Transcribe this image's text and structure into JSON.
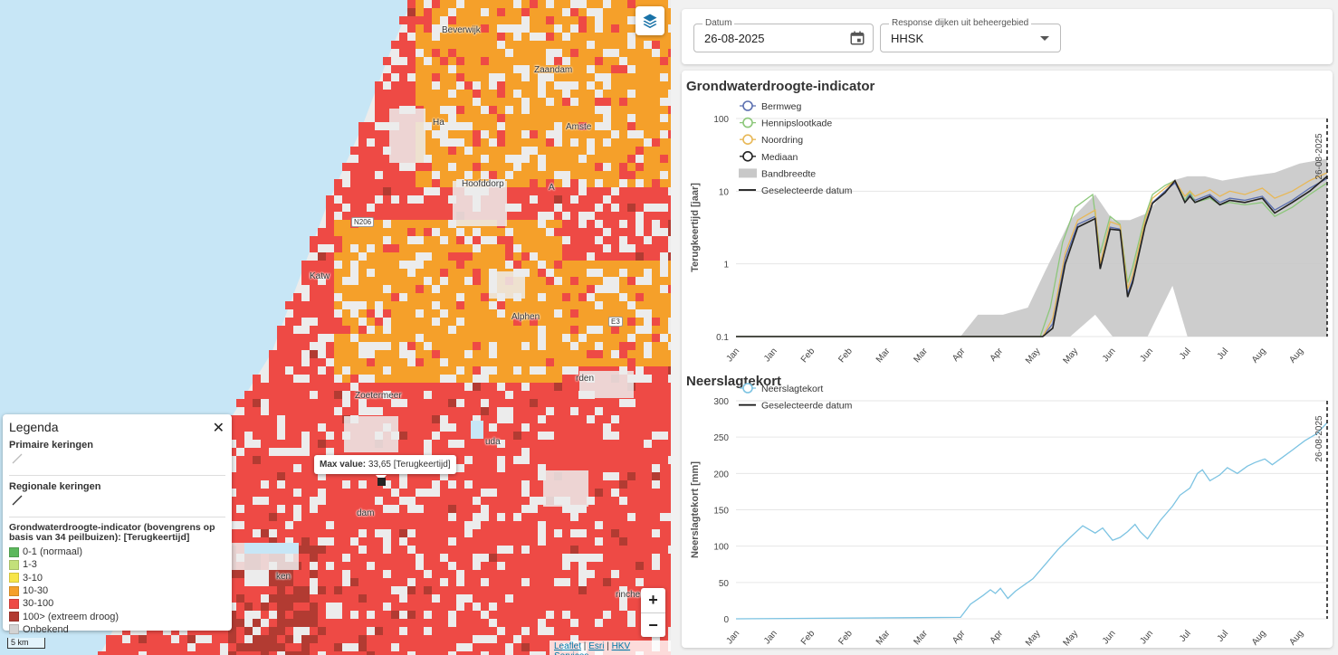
{
  "map": {
    "colors": {
      "water": "#c7e6f6",
      "land": "#ececec",
      "c_0_1": "#5cb85c",
      "c_1_3": "#c3e07a",
      "c_3_10": "#f7e548",
      "c_10_30": "#f5a02a",
      "c_30_100": "#ee4a45",
      "c_100": "#b23b32",
      "unknown": "#d3d3d3"
    },
    "place_labels": [
      {
        "name": "pl-beverwijk",
        "text": "Beverwijk"
      },
      {
        "name": "pl-zaandam",
        "text": "Zaandam"
      },
      {
        "name": "pl-haarlem",
        "text": "Ha"
      },
      {
        "name": "pl-amsterdam",
        "text": "Amste"
      },
      {
        "name": "pl-hoofddorp",
        "text": "Hoofddorp"
      },
      {
        "name": "pl-aalsmeer",
        "text": "A"
      },
      {
        "name": "pl-katwijk",
        "text": "Katw"
      },
      {
        "name": "pl-alphen",
        "text": "Alphen"
      },
      {
        "name": "pl-zoetermeer",
        "text": "Zoetermeer"
      },
      {
        "name": "pl-rotterdam",
        "text": "dam"
      },
      {
        "name": "pl-gouda",
        "text": "uda"
      },
      {
        "name": "pl-woerden",
        "text": "rden"
      },
      {
        "name": "pl-gorinchem",
        "text": "rinchem"
      },
      {
        "name": "pl-spijkenisse",
        "text": "ken"
      }
    ],
    "road_shields": [
      {
        "name": "road-n206",
        "text": "N206"
      },
      {
        "name": "road-e35",
        "text": "E3"
      }
    ],
    "tooltip": {
      "label": "Max value:",
      "value": "33,65 [Terugkeertijd]"
    },
    "zoom_in": "+",
    "zoom_out": "−",
    "scale": "5 km",
    "attribution": {
      "leaflet": "Leaflet",
      "sep1": " | ",
      "esri": "Esri",
      "sep2": " | ",
      "hkv": "HKV Services"
    }
  },
  "legend": {
    "title": "Legenda",
    "close": "✕",
    "primaire": "Primaire keringen",
    "regionale": "Regionale keringen",
    "indicator_title": "Grondwaterdroogte-indicator (bovengrens op basis van 34 peilbuizen): [Terugkeertijd]",
    "items": [
      {
        "label": "0-1 (normaal)",
        "color": "#5cb85c"
      },
      {
        "label": "1-3",
        "color": "#c3e07a"
      },
      {
        "label": "3-10",
        "color": "#f7e548"
      },
      {
        "label": "10-30",
        "color": "#f5a02a"
      },
      {
        "label": "30-100",
        "color": "#ee4a45"
      },
      {
        "label": "100> (extreem droog)",
        "color": "#b23b32"
      },
      {
        "label": "Onbekend",
        "color": "#d3d3d3"
      }
    ]
  },
  "filters": {
    "date_label": "Datum",
    "date_value": "26-08-2025",
    "dijk_label": "Response dijken uit beheergebied",
    "dijk_value": "HHSK"
  },
  "chart_data": [
    {
      "type": "line",
      "title": "Grondwaterdroogte-indicator",
      "ylabel": "Terugkeertijd [jaar]",
      "xlabel": "",
      "yscale": "log",
      "ylim": [
        0.1,
        100
      ],
      "yticks": [
        "0.1",
        "1",
        "10",
        "100"
      ],
      "x_ticks": [
        "Jan",
        "Jan",
        "Feb",
        "Feb",
        "Mar",
        "Mar",
        "Apr",
        "Apr",
        "May",
        "May",
        "Jun",
        "Jun",
        "Jul",
        "Jul",
        "Aug",
        "Aug"
      ],
      "x_range": [
        "2025-01-01",
        "2025-08-26"
      ],
      "selected_date": "26-08-2025",
      "series": [
        {
          "name": "Bermweg",
          "color": "#5b6fb0",
          "x": [
            "2025-01-01",
            "2025-04-20",
            "2025-05-04",
            "2025-05-08",
            "2025-05-13",
            "2025-05-18",
            "2025-05-25",
            "2025-05-27",
            "2025-05-31",
            "2025-06-04",
            "2025-06-07",
            "2025-06-09",
            "2025-06-14",
            "2025-06-17",
            "2025-06-22",
            "2025-06-26",
            "2025-06-30",
            "2025-07-02",
            "2025-07-04",
            "2025-07-10",
            "2025-07-14",
            "2025-07-18",
            "2025-07-24",
            "2025-07-31",
            "2025-08-05",
            "2025-08-12",
            "2025-08-19",
            "2025-08-26"
          ],
          "y": [
            0.1,
            0.1,
            0.1,
            0.15,
            1.2,
            3.5,
            4.5,
            0.9,
            3.2,
            3.0,
            0.38,
            0.6,
            3.5,
            7,
            10,
            13,
            7.5,
            9,
            7.5,
            9,
            7,
            8,
            7.5,
            8.5,
            5.5,
            7.5,
            11,
            15
          ]
        },
        {
          "name": "Hennipslootkade",
          "color": "#8cc77a",
          "x": [
            "2025-01-01",
            "2025-04-20",
            "2025-05-03",
            "2025-05-07",
            "2025-05-12",
            "2025-05-17",
            "2025-05-24",
            "2025-05-27",
            "2025-05-31",
            "2025-06-04",
            "2025-06-07",
            "2025-06-09",
            "2025-06-14",
            "2025-06-17",
            "2025-06-22",
            "2025-06-26",
            "2025-06-30",
            "2025-07-02",
            "2025-07-04",
            "2025-07-10",
            "2025-07-14",
            "2025-07-18",
            "2025-07-24",
            "2025-07-31",
            "2025-08-05",
            "2025-08-12",
            "2025-08-19",
            "2025-08-26"
          ],
          "y": [
            0.1,
            0.1,
            0.1,
            0.25,
            2.0,
            6,
            9,
            1.4,
            4.5,
            3.5,
            0.55,
            0.9,
            4.5,
            9,
            12,
            14,
            7.5,
            10,
            7,
            8,
            6.5,
            7,
            6.5,
            7,
            4.5,
            6,
            9,
            13
          ]
        },
        {
          "name": "Noordring",
          "color": "#e8b857",
          "x": [
            "2025-01-01",
            "2025-04-20",
            "2025-05-04",
            "2025-05-08",
            "2025-05-13",
            "2025-05-18",
            "2025-05-25",
            "2025-05-27",
            "2025-05-31",
            "2025-06-04",
            "2025-06-07",
            "2025-06-09",
            "2025-06-14",
            "2025-06-17",
            "2025-06-22",
            "2025-06-26",
            "2025-06-30",
            "2025-07-02",
            "2025-07-04",
            "2025-07-10",
            "2025-07-14",
            "2025-07-18",
            "2025-07-24",
            "2025-07-31",
            "2025-08-05",
            "2025-08-12",
            "2025-08-19",
            "2025-08-26"
          ],
          "y": [
            0.1,
            0.1,
            0.1,
            0.18,
            1.4,
            4.0,
            5.5,
            1.0,
            3.8,
            3.4,
            0.45,
            0.7,
            4.0,
            8,
            11,
            14,
            8.5,
            10,
            8.5,
            10.5,
            8.5,
            10,
            9,
            11,
            8,
            10,
            14,
            18
          ]
        },
        {
          "name": "Mediaan",
          "color": "#222222",
          "x": [
            "2025-01-01",
            "2025-04-20",
            "2025-05-04",
            "2025-05-08",
            "2025-05-13",
            "2025-05-18",
            "2025-05-25",
            "2025-05-27",
            "2025-05-31",
            "2025-06-04",
            "2025-06-07",
            "2025-06-09",
            "2025-06-14",
            "2025-06-17",
            "2025-06-22",
            "2025-06-26",
            "2025-06-30",
            "2025-07-02",
            "2025-07-04",
            "2025-07-10",
            "2025-07-14",
            "2025-07-18",
            "2025-07-24",
            "2025-07-31",
            "2025-08-05",
            "2025-08-12",
            "2025-08-19",
            "2025-08-26"
          ],
          "y": [
            0.1,
            0.1,
            0.1,
            0.13,
            1.0,
            3.2,
            4.2,
            0.85,
            3.0,
            2.9,
            0.35,
            0.55,
            3.3,
            6.8,
            9.5,
            14,
            7,
            8.5,
            7,
            8.5,
            6.5,
            7.5,
            7,
            8,
            5,
            7,
            10,
            16
          ]
        }
      ],
      "band": {
        "name": "Bandbreedte",
        "color": "#c8c8c8",
        "x": [
          "2025-04-01",
          "2025-04-08",
          "2025-04-18",
          "2025-04-28",
          "2025-05-05",
          "2025-05-15",
          "2025-05-25",
          "2025-06-01",
          "2025-06-08",
          "2025-06-15",
          "2025-06-25",
          "2025-07-01",
          "2025-07-08",
          "2025-07-15",
          "2025-07-25",
          "2025-08-05",
          "2025-08-15",
          "2025-08-26"
        ],
        "upper": [
          0.1,
          0.2,
          0.2,
          0.25,
          0.8,
          4,
          9,
          4,
          4,
          5,
          14,
          16,
          16,
          14,
          16,
          18,
          24,
          28
        ],
        "lower": [
          0.1,
          0.1,
          0.1,
          0.1,
          0.1,
          0.1,
          0.2,
          0.1,
          0.1,
          0.1,
          0.5,
          0.1,
          0.1,
          0.1,
          0.1,
          0.1,
          0.1,
          0.1
        ]
      },
      "legend": [
        {
          "label": "Bermweg",
          "kind": "circle",
          "color": "#5b6fb0"
        },
        {
          "label": "Hennipslootkade",
          "kind": "circle",
          "color": "#8cc77a"
        },
        {
          "label": "Noordring",
          "kind": "circle",
          "color": "#e8b857"
        },
        {
          "label": "Mediaan",
          "kind": "circle",
          "color": "#222222"
        },
        {
          "label": "Bandbreedte",
          "kind": "rect",
          "color": "#c8c8c8"
        },
        {
          "label": "Geselecteerde datum",
          "kind": "line",
          "color": "#111111"
        }
      ]
    },
    {
      "type": "line",
      "title": "Neerslagtekort",
      "ylabel": "Neerslagtekort [mm]",
      "xlabel": "",
      "ylim": [
        0,
        300
      ],
      "yticks": [
        0,
        50,
        100,
        150,
        200,
        250,
        300
      ],
      "x_ticks": [
        "Jan",
        "Jan",
        "Feb",
        "Feb",
        "Mar",
        "Mar",
        "Apr",
        "Apr",
        "May",
        "May",
        "Jun",
        "Jun",
        "Jul",
        "Jul",
        "Aug",
        "Aug"
      ],
      "x_range": [
        "2025-01-01",
        "2025-08-26"
      ],
      "selected_date": "26-08-2025",
      "series": [
        {
          "name": "Neerslagtekort",
          "color": "#7cc3e2",
          "x": [
            "2025-01-01",
            "2025-04-01",
            "2025-04-05",
            "2025-04-10",
            "2025-04-13",
            "2025-04-15",
            "2025-04-17",
            "2025-04-20",
            "2025-04-23",
            "2025-04-30",
            "2025-05-05",
            "2025-05-10",
            "2025-05-15",
            "2025-05-20",
            "2025-05-25",
            "2025-05-28",
            "2025-06-01",
            "2025-06-04",
            "2025-06-07",
            "2025-06-10",
            "2025-06-12",
            "2025-06-15",
            "2025-06-20",
            "2025-06-25",
            "2025-06-28",
            "2025-07-02",
            "2025-07-05",
            "2025-07-07",
            "2025-07-10",
            "2025-07-14",
            "2025-07-17",
            "2025-07-21",
            "2025-07-25",
            "2025-07-28",
            "2025-08-01",
            "2025-08-04",
            "2025-08-08",
            "2025-08-12",
            "2025-08-17",
            "2025-08-22",
            "2025-08-26"
          ],
          "y": [
            0,
            2,
            20,
            32,
            40,
            35,
            42,
            28,
            38,
            55,
            75,
            95,
            112,
            128,
            118,
            125,
            108,
            112,
            120,
            130,
            120,
            110,
            135,
            155,
            170,
            180,
            200,
            205,
            190,
            198,
            208,
            200,
            210,
            215,
            220,
            212,
            222,
            232,
            245,
            255,
            270
          ]
        }
      ],
      "legend": [
        {
          "label": "Neerslagtekort",
          "kind": "circle",
          "color": "#7cc3e2"
        },
        {
          "label": "Geselecteerde datum",
          "kind": "line",
          "color": "#111111"
        }
      ]
    }
  ]
}
